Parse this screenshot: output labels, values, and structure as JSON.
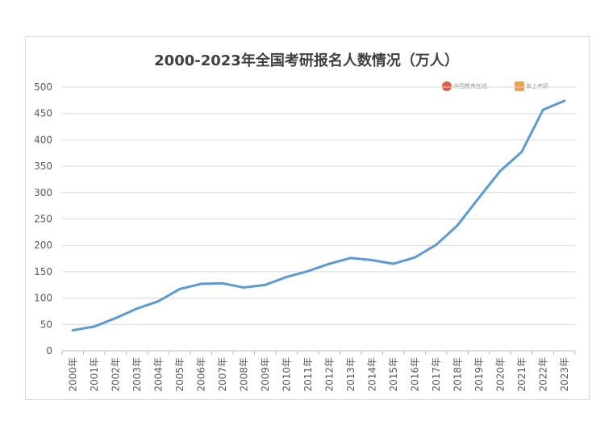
{
  "chart_data": {
    "type": "line",
    "title": "2000-2023年全国考研报名人数情况（万人）",
    "categories": [
      "2000年",
      "2001年",
      "2002年",
      "2003年",
      "2004年",
      "2005年",
      "2006年",
      "2007年",
      "2008年",
      "2009年",
      "2010年",
      "2011年",
      "2012年",
      "2013年",
      "2014年",
      "2015年",
      "2016年",
      "2017年",
      "2018年",
      "2019年",
      "2020年",
      "2021年",
      "2022年",
      "2023年"
    ],
    "series": [
      {
        "values": [
          39,
          46,
          62,
          80,
          94,
          117,
          127,
          128,
          120,
          125,
          140,
          151,
          165,
          176,
          172,
          165,
          177,
          201,
          238,
          290,
          341,
          377,
          457,
          474
        ]
      }
    ],
    "ylim": [
      0,
      500
    ],
    "yticks": [
      0,
      50,
      100,
      150,
      200,
      250,
      300,
      350,
      400,
      450,
      500
    ],
    "grid": true,
    "line_color": "#5b9bd5"
  },
  "watermarks": [
    {
      "text": "中国教育在线",
      "color": "#e05a47"
    },
    {
      "text": "掌上考研",
      "color": "#f0a050"
    }
  ]
}
